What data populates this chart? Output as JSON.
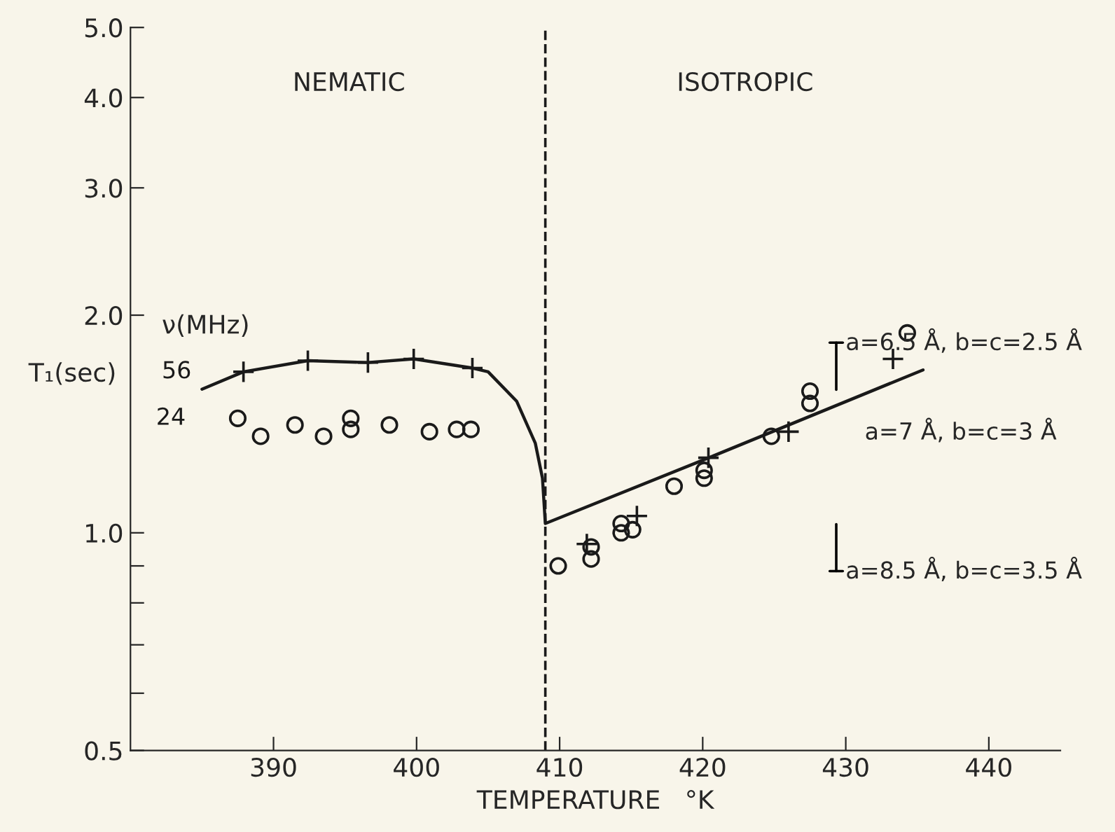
{
  "chart_data": {
    "type": "scatter",
    "xlabel": "TEMPERATURE   °K",
    "ylabel": "T₁(sec)",
    "legend_title": "ν(MHz)",
    "log": "y",
    "grid": false,
    "xlim": [
      380,
      445
    ],
    "xticks": [
      390,
      400,
      410,
      420,
      430,
      440
    ],
    "ylim": [
      0.5,
      5.0
    ],
    "yticks": [
      {
        "value": 0.5,
        "label": "0.5"
      },
      {
        "value": 0.6,
        "label": null
      },
      {
        "value": 0.7,
        "label": null
      },
      {
        "value": 0.8,
        "label": null
      },
      {
        "value": 0.9,
        "label": null
      },
      {
        "value": 1.0,
        "label": "1.0"
      },
      {
        "value": 2.0,
        "label": "2.0"
      },
      {
        "value": 3.0,
        "label": "3.0"
      },
      {
        "value": 4.0,
        "label": "4.0"
      },
      {
        "value": 5.0,
        "label": "5.0"
      }
    ],
    "series": [
      {
        "name": "56",
        "marker": "cross",
        "color": "#1a1a1a",
        "x": [
          387.9,
          392.4,
          396.6,
          399.8,
          403.9,
          411.9,
          415.4,
          420.4,
          426.0,
          433.3
        ],
        "values": [
          1.67,
          1.73,
          1.72,
          1.74,
          1.69,
          0.965,
          1.055,
          1.27,
          1.38,
          1.74
        ]
      },
      {
        "name": "24",
        "marker": "circle",
        "color": "#1a1a1a",
        "x": [
          387.5,
          389.1,
          391.5,
          393.5,
          395.4,
          395.4,
          398.1,
          400.9,
          402.8,
          403.8,
          409.9,
          412.2,
          412.2,
          414.3,
          414.3,
          415.1,
          418.0,
          420.1,
          420.1,
          424.8,
          427.5,
          427.5,
          434.3
        ],
        "values": [
          1.44,
          1.36,
          1.41,
          1.36,
          1.44,
          1.39,
          1.41,
          1.38,
          1.39,
          1.39,
          0.9,
          0.956,
          0.92,
          1.03,
          1.0,
          1.01,
          1.16,
          1.22,
          1.19,
          1.36,
          1.57,
          1.51,
          1.89
        ]
      },
      {
        "type": "line",
        "marker": "none",
        "line_style": "solid",
        "color": "#1a1a1a",
        "x": [
          385.0,
          387.9,
          392.4,
          396.6,
          399.8,
          403.9,
          405.0,
          407.0,
          408.3,
          408.8,
          409.0,
          420.0,
          435.4
        ],
        "values": [
          1.58,
          1.67,
          1.73,
          1.72,
          1.74,
          1.69,
          1.67,
          1.52,
          1.33,
          1.19,
          1.03,
          1.26,
          1.68
        ]
      }
    ],
    "ref_lines": [
      {
        "axis": "x",
        "value": 409,
        "line_style": "dashed",
        "color": "#1a1a1a"
      }
    ],
    "annotations": [
      "NEMATIC",
      "ISOTROPIC",
      "a=6.5 Å, b=c=2.5 Å",
      {
        "text": "a=7 Å, b=c=3 Å",
        "x": 435.4,
        "y": 1.68
      },
      "a=8.5 Å, b=c=3.5 Å"
    ]
  }
}
